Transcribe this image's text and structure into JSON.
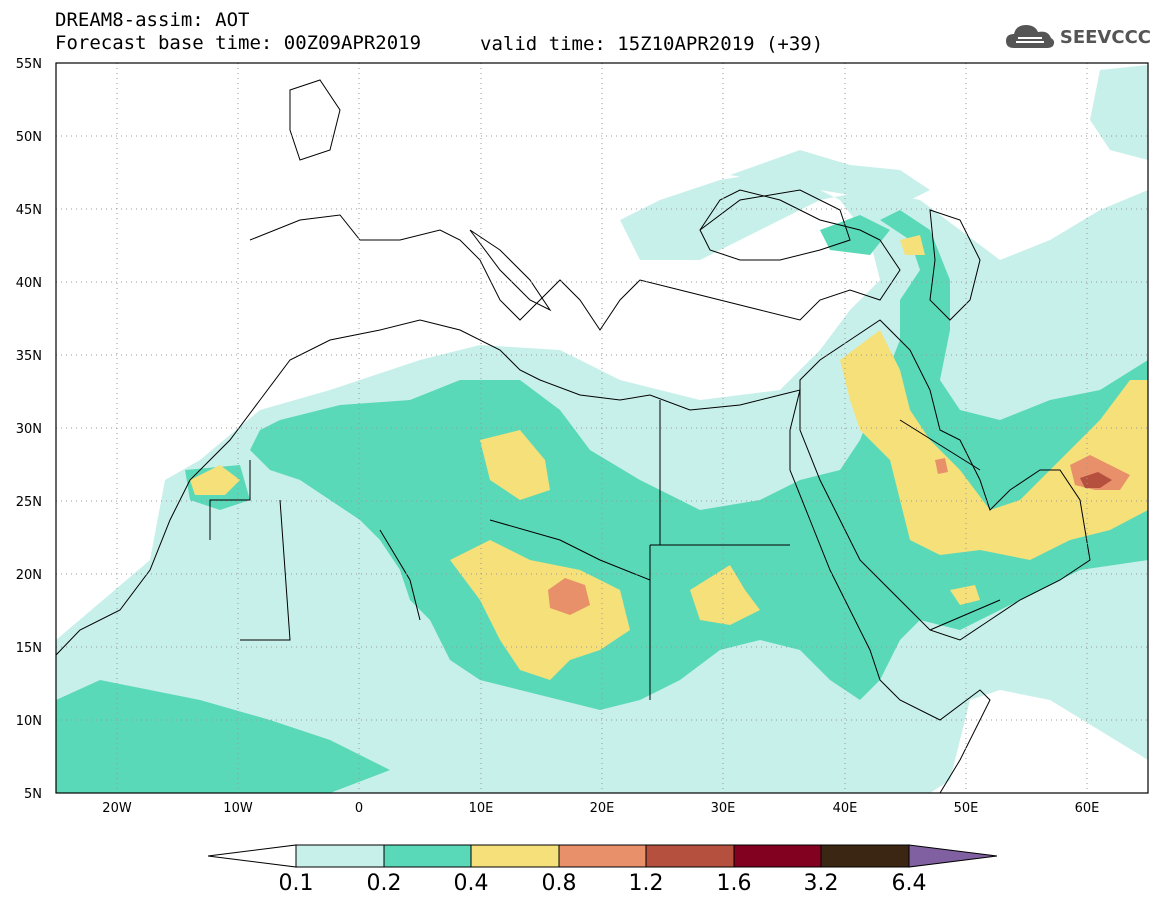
{
  "header": {
    "line1": "DREAM8-assim: AOT",
    "line2": "Forecast base time: 00Z09APR2019",
    "line2_valid": "valid time: 15Z10APR2019 (+39)",
    "logo_text": "SEEVCCC"
  },
  "axes": {
    "lat_labels": [
      "55N",
      "50N",
      "45N",
      "40N",
      "35N",
      "30N",
      "25N",
      "20N",
      "15N",
      "10N",
      "5N"
    ],
    "lon_labels": [
      "20W",
      "10W",
      "0",
      "10E",
      "20E",
      "30E",
      "40E",
      "50E",
      "60E"
    ]
  },
  "legend": {
    "levels": [
      "0.1",
      "0.2",
      "0.4",
      "0.8",
      "1.2",
      "1.6",
      "3.2",
      "6.4"
    ],
    "colors": [
      "#ffffff",
      "#c8f0ea",
      "#5ad9b8",
      "#f5e07a",
      "#e8906a",
      "#b5503e",
      "#820020",
      "#3a2612",
      "#8060a0"
    ]
  },
  "colors": {
    "c1": "#c8f0ea",
    "c2": "#5ad9b8",
    "c3": "#f5e07a",
    "c4": "#e8906a",
    "c5": "#b5503e",
    "c6": "#820020"
  }
}
